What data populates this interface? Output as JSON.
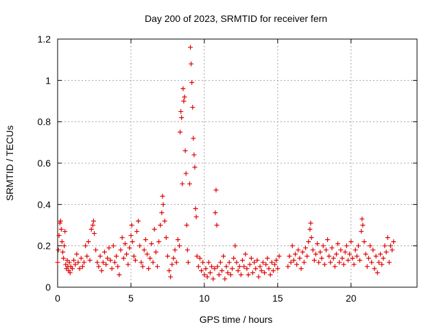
{
  "chart_data": {
    "type": "scatter",
    "title": "Day 200 of 2023, SRMTID for receiver fern",
    "xlabel": "GPS time / hours",
    "ylabel": "SRMTID / TECUs",
    "xlim": [
      0,
      24.5
    ],
    "ylim": [
      0,
      1.2
    ],
    "xticks": [
      0,
      5,
      10,
      15,
      20
    ],
    "xtick_labels": [
      "0",
      "5",
      "10",
      "15",
      "20"
    ],
    "yticks": [
      0,
      0.2,
      0.4,
      0.6,
      0.8,
      1.0,
      1.2
    ],
    "ytick_labels": [
      "0",
      "0.2",
      "0.4",
      "0.6",
      "0.8",
      "1",
      "1.2"
    ],
    "grid": true,
    "marker": "plus",
    "series": [
      {
        "name": "SRMTID",
        "color": "#e00000",
        "points": [
          [
            0.0,
            0.12
          ],
          [
            0.05,
            0.18
          ],
          [
            0.1,
            0.25
          ],
          [
            0.15,
            0.31
          ],
          [
            0.2,
            0.32
          ],
          [
            0.25,
            0.28
          ],
          [
            0.3,
            0.22
          ],
          [
            0.35,
            0.17
          ],
          [
            0.4,
            0.14
          ],
          [
            0.45,
            0.2
          ],
          [
            0.5,
            0.27
          ],
          [
            0.55,
            0.11
          ],
          [
            0.6,
            0.09
          ],
          [
            0.65,
            0.13
          ],
          [
            0.7,
            0.1
          ],
          [
            0.75,
            0.08
          ],
          [
            0.8,
            0.12
          ],
          [
            0.85,
            0.07
          ],
          [
            0.9,
            0.1
          ],
          [
            1.0,
            0.09
          ],
          [
            1.1,
            0.13
          ],
          [
            1.2,
            0.11
          ],
          [
            1.3,
            0.16
          ],
          [
            1.4,
            0.12
          ],
          [
            1.5,
            0.09
          ],
          [
            1.6,
            0.14
          ],
          [
            1.7,
            0.1
          ],
          [
            1.8,
            0.12
          ],
          [
            1.9,
            0.2
          ],
          [
            2.0,
            0.15
          ],
          [
            2.1,
            0.22
          ],
          [
            2.2,
            0.13
          ],
          [
            2.3,
            0.28
          ],
          [
            2.4,
            0.3
          ],
          [
            2.45,
            0.32
          ],
          [
            2.5,
            0.26
          ],
          [
            2.6,
            0.18
          ],
          [
            2.7,
            0.12
          ],
          [
            2.8,
            0.1
          ],
          [
            2.9,
            0.15
          ],
          [
            3.0,
            0.08
          ],
          [
            3.1,
            0.12
          ],
          [
            3.2,
            0.17
          ],
          [
            3.3,
            0.11
          ],
          [
            3.4,
            0.14
          ],
          [
            3.5,
            0.19
          ],
          [
            3.6,
            0.13
          ],
          [
            3.7,
            0.09
          ],
          [
            3.8,
            0.2
          ],
          [
            3.9,
            0.12
          ],
          [
            4.0,
            0.15
          ],
          [
            4.1,
            0.1
          ],
          [
            4.2,
            0.06
          ],
          [
            4.3,
            0.18
          ],
          [
            4.4,
            0.24
          ],
          [
            4.5,
            0.14
          ],
          [
            4.6,
            0.21
          ],
          [
            4.7,
            0.16
          ],
          [
            4.8,
            0.11
          ],
          [
            4.9,
            0.19
          ],
          [
            5.0,
            0.25
          ],
          [
            5.05,
            0.3
          ],
          [
            5.1,
            0.22
          ],
          [
            5.2,
            0.15
          ],
          [
            5.3,
            0.13
          ],
          [
            5.4,
            0.27
          ],
          [
            5.5,
            0.32
          ],
          [
            5.6,
            0.2
          ],
          [
            5.7,
            0.12
          ],
          [
            5.8,
            0.1
          ],
          [
            5.9,
            0.18
          ],
          [
            6.0,
            0.23
          ],
          [
            6.1,
            0.16
          ],
          [
            6.2,
            0.09
          ],
          [
            6.3,
            0.14
          ],
          [
            6.4,
            0.21
          ],
          [
            6.5,
            0.12
          ],
          [
            6.6,
            0.28
          ],
          [
            6.7,
            0.17
          ],
          [
            6.8,
            0.1
          ],
          [
            6.9,
            0.22
          ],
          [
            7.0,
            0.3
          ],
          [
            7.1,
            0.36
          ],
          [
            7.15,
            0.44
          ],
          [
            7.2,
            0.4
          ],
          [
            7.3,
            0.32
          ],
          [
            7.4,
            0.24
          ],
          [
            7.5,
            0.15
          ],
          [
            7.6,
            0.08
          ],
          [
            7.7,
            0.05
          ],
          [
            7.8,
            0.11
          ],
          [
            7.9,
            0.14
          ],
          [
            8.0,
            0.18
          ],
          [
            8.1,
            0.12
          ],
          [
            8.2,
            0.23
          ],
          [
            8.3,
            0.2
          ],
          [
            8.35,
            0.75
          ],
          [
            8.4,
            0.85
          ],
          [
            8.45,
            0.82
          ],
          [
            8.5,
            0.5
          ],
          [
            8.55,
            0.96
          ],
          [
            8.6,
            0.9
          ],
          [
            8.65,
            0.92
          ],
          [
            8.7,
            0.66
          ],
          [
            8.75,
            0.55
          ],
          [
            8.8,
            0.3
          ],
          [
            8.85,
            0.18
          ],
          [
            8.9,
            0.12
          ],
          [
            9.0,
            0.5
          ],
          [
            9.05,
            1.16
          ],
          [
            9.1,
            1.08
          ],
          [
            9.15,
            0.99
          ],
          [
            9.2,
            0.87
          ],
          [
            9.25,
            0.72
          ],
          [
            9.3,
            0.64
          ],
          [
            9.35,
            0.58
          ],
          [
            9.4,
            0.38
          ],
          [
            9.45,
            0.34
          ],
          [
            9.5,
            0.15
          ],
          [
            9.6,
            0.1
          ],
          [
            9.7,
            0.14
          ],
          [
            9.8,
            0.08
          ],
          [
            9.9,
            0.12
          ],
          [
            10.0,
            0.06
          ],
          [
            10.1,
            0.09
          ],
          [
            10.2,
            0.05
          ],
          [
            10.3,
            0.12
          ],
          [
            10.4,
            0.07
          ],
          [
            10.5,
            0.1
          ],
          [
            10.6,
            0.04
          ],
          [
            10.7,
            0.09
          ],
          [
            10.75,
            0.36
          ],
          [
            10.8,
            0.47
          ],
          [
            10.85,
            0.3
          ],
          [
            10.9,
            0.1
          ],
          [
            11.0,
            0.06
          ],
          [
            11.1,
            0.12
          ],
          [
            11.2,
            0.08
          ],
          [
            11.3,
            0.15
          ],
          [
            11.4,
            0.04
          ],
          [
            11.5,
            0.1
          ],
          [
            11.6,
            0.07
          ],
          [
            11.7,
            0.12
          ],
          [
            11.8,
            0.06
          ],
          [
            11.9,
            0.09
          ],
          [
            12.0,
            0.14
          ],
          [
            12.1,
            0.2
          ],
          [
            12.2,
            0.12
          ],
          [
            12.3,
            0.08
          ],
          [
            12.4,
            0.1
          ],
          [
            12.5,
            0.06
          ],
          [
            12.6,
            0.13
          ],
          [
            12.7,
            0.1
          ],
          [
            12.8,
            0.16
          ],
          [
            12.9,
            0.09
          ],
          [
            13.0,
            0.06
          ],
          [
            13.1,
            0.11
          ],
          [
            13.2,
            0.14
          ],
          [
            13.3,
            0.07
          ],
          [
            13.4,
            0.12
          ],
          [
            13.5,
            0.09
          ],
          [
            13.6,
            0.13
          ],
          [
            13.7,
            0.05
          ],
          [
            13.8,
            0.1
          ],
          [
            13.9,
            0.08
          ],
          [
            14.0,
            0.12
          ],
          [
            14.1,
            0.07
          ],
          [
            14.2,
            0.11
          ],
          [
            14.3,
            0.14
          ],
          [
            14.4,
            0.09
          ],
          [
            14.5,
            0.06
          ],
          [
            14.6,
            0.12
          ],
          [
            14.7,
            0.08
          ],
          [
            14.8,
            0.11
          ],
          [
            14.9,
            0.13
          ],
          [
            15.0,
            0.09
          ],
          [
            15.1,
            0.15
          ],
          [
            15.7,
            0.1
          ],
          [
            15.8,
            0.15
          ],
          [
            15.9,
            0.12
          ],
          [
            16.0,
            0.2
          ],
          [
            16.1,
            0.13
          ],
          [
            16.2,
            0.16
          ],
          [
            16.3,
            0.11
          ],
          [
            16.4,
            0.18
          ],
          [
            16.5,
            0.14
          ],
          [
            16.6,
            0.09
          ],
          [
            16.7,
            0.17
          ],
          [
            16.8,
            0.12
          ],
          [
            16.9,
            0.19
          ],
          [
            17.0,
            0.15
          ],
          [
            17.1,
            0.22
          ],
          [
            17.2,
            0.28
          ],
          [
            17.25,
            0.31
          ],
          [
            17.3,
            0.24
          ],
          [
            17.4,
            0.18
          ],
          [
            17.5,
            0.13
          ],
          [
            17.6,
            0.16
          ],
          [
            17.7,
            0.21
          ],
          [
            17.8,
            0.12
          ],
          [
            17.9,
            0.17
          ],
          [
            18.0,
            0.14
          ],
          [
            18.1,
            0.2
          ],
          [
            18.2,
            0.11
          ],
          [
            18.3,
            0.18
          ],
          [
            18.4,
            0.23
          ],
          [
            18.5,
            0.15
          ],
          [
            18.6,
            0.12
          ],
          [
            18.7,
            0.19
          ],
          [
            18.8,
            0.14
          ],
          [
            18.9,
            0.1
          ],
          [
            19.0,
            0.16
          ],
          [
            19.1,
            0.21
          ],
          [
            19.2,
            0.12
          ],
          [
            19.3,
            0.18
          ],
          [
            19.4,
            0.14
          ],
          [
            19.5,
            0.11
          ],
          [
            19.6,
            0.17
          ],
          [
            19.7,
            0.2
          ],
          [
            19.8,
            0.13
          ],
          [
            19.9,
            0.16
          ],
          [
            20.0,
            0.22
          ],
          [
            20.1,
            0.14
          ],
          [
            20.2,
            0.11
          ],
          [
            20.3,
            0.18
          ],
          [
            20.4,
            0.15
          ],
          [
            20.5,
            0.2
          ],
          [
            20.6,
            0.13
          ],
          [
            20.7,
            0.27
          ],
          [
            20.75,
            0.33
          ],
          [
            20.8,
            0.3
          ],
          [
            20.9,
            0.22
          ],
          [
            21.0,
            0.16
          ],
          [
            21.1,
            0.1
          ],
          [
            21.2,
            0.14
          ],
          [
            21.3,
            0.2
          ],
          [
            21.4,
            0.12
          ],
          [
            21.5,
            0.18
          ],
          [
            21.6,
            0.09
          ],
          [
            21.7,
            0.15
          ],
          [
            21.8,
            0.07
          ],
          [
            21.9,
            0.12
          ],
          [
            22.0,
            0.16
          ],
          [
            22.1,
            0.11
          ],
          [
            22.2,
            0.14
          ],
          [
            22.3,
            0.2
          ],
          [
            22.4,
            0.17
          ],
          [
            22.5,
            0.24
          ],
          [
            22.6,
            0.12
          ],
          [
            22.7,
            0.2
          ],
          [
            22.8,
            0.18
          ],
          [
            22.9,
            0.22
          ]
        ]
      }
    ]
  }
}
